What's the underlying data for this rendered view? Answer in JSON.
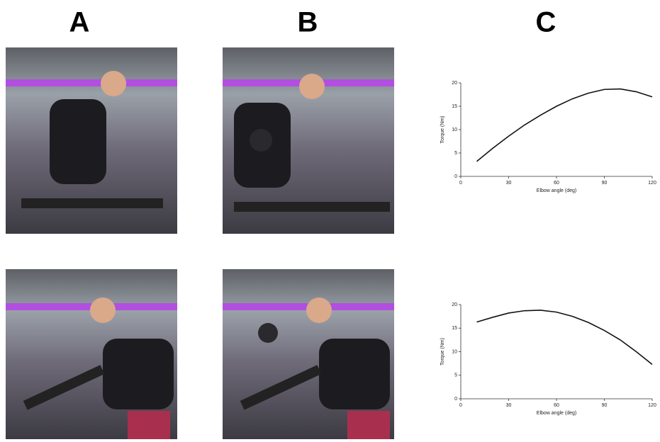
{
  "panels": [
    "A",
    "B",
    "C"
  ],
  "chart_data": [
    {
      "type": "line",
      "xlabel": "Elbow angle (deg)",
      "ylabel": "Torque (Nm)",
      "x": [
        10,
        20,
        30,
        40,
        50,
        60,
        70,
        80,
        90,
        100,
        110,
        120
      ],
      "values": [
        3.2,
        6.0,
        8.6,
        11.0,
        13.1,
        15.0,
        16.6,
        17.8,
        18.6,
        18.7,
        18.1,
        17.0
      ],
      "color": "#111111",
      "xlim": [
        0,
        120
      ],
      "xticks": [
        0,
        30,
        60,
        90,
        120
      ],
      "ylim": [
        0,
        20
      ],
      "yticks": [
        0,
        5,
        10,
        15,
        20
      ]
    },
    {
      "type": "line",
      "xlabel": "Elbow angle (deg)",
      "ylabel": "Torque (Nm)",
      "x": [
        10,
        20,
        30,
        40,
        50,
        60,
        70,
        80,
        90,
        100,
        110,
        120
      ],
      "values": [
        16.3,
        17.3,
        18.2,
        18.7,
        18.8,
        18.4,
        17.5,
        16.2,
        14.5,
        12.5,
        10.0,
        7.3
      ],
      "color": "#111111",
      "xlim": [
        0,
        120
      ],
      "xticks": [
        0,
        30,
        60,
        90,
        120
      ],
      "ylim": [
        0,
        20
      ],
      "yticks": [
        0,
        5,
        10,
        15,
        20
      ]
    }
  ]
}
